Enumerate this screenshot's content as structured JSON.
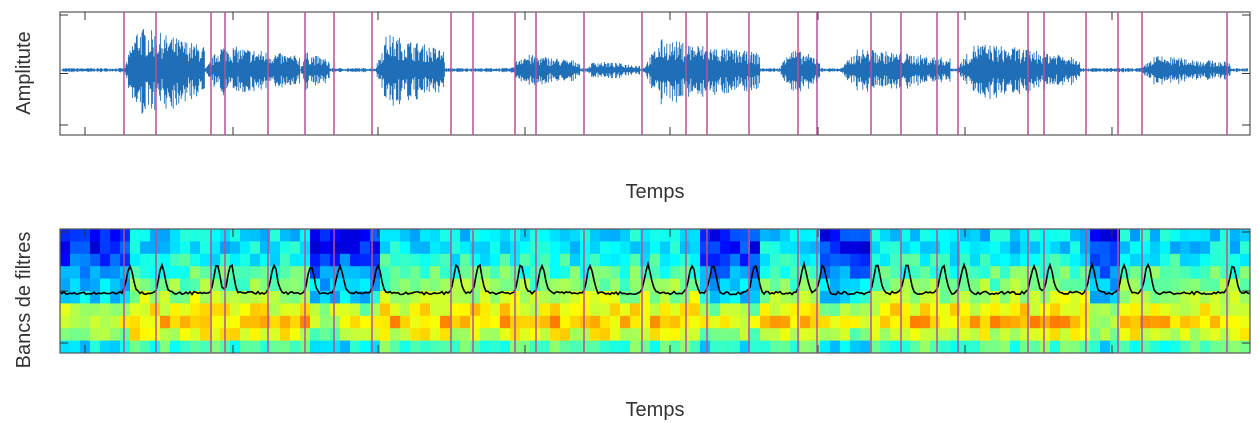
{
  "chart_data": [
    {
      "type": "line",
      "ylabel": "Amplitute",
      "xlabel": "Temps"
    },
    {
      "type": "heatmap",
      "ylabel": "Bancs de filtres",
      "xlabel": "Temps"
    }
  ]
}
